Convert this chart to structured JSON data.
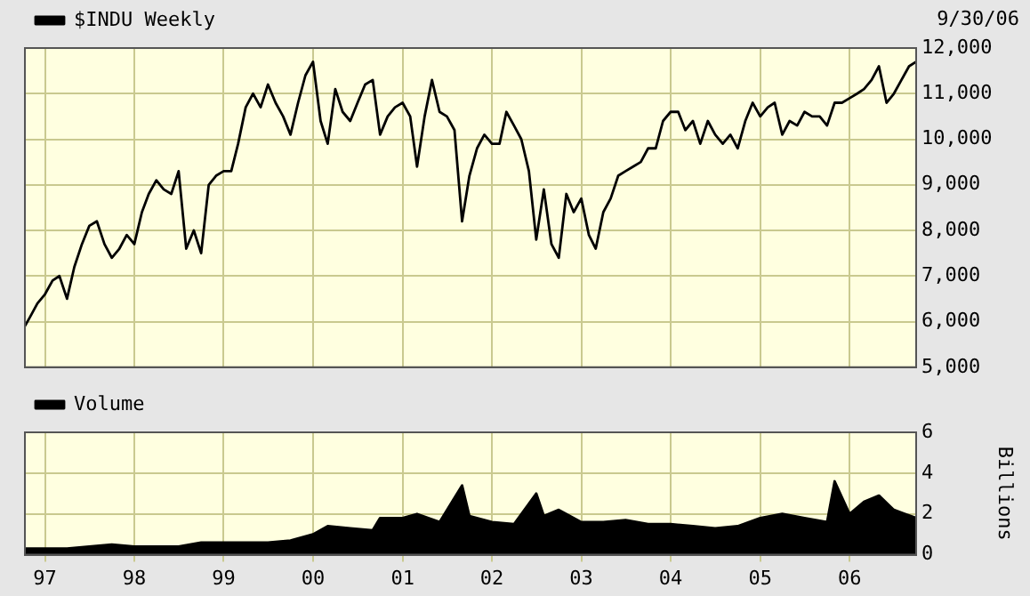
{
  "chart_data": [
    {
      "type": "line",
      "annotations": [
        "9/30/06"
      ],
      "legend": "top left",
      "grid": true,
      "tick_labels": "y",
      "xlim": [
        "1996-10-11",
        "2006-09-30"
      ],
      "xticks": [
        {
          "value": "1997-01-01",
          "label": null
        },
        {
          "value": "1998-01-01",
          "label": null
        },
        {
          "value": "1999-01-01",
          "label": null
        },
        {
          "value": "2000-01-01",
          "label": null
        },
        {
          "value": "2001-01-01",
          "label": null
        },
        {
          "value": "2002-01-01",
          "label": null
        },
        {
          "value": "2003-01-01",
          "label": null
        },
        {
          "value": "2004-01-01",
          "label": null
        },
        {
          "value": "2005-01-01",
          "label": null
        },
        {
          "value": "2006-01-01",
          "label": null
        }
      ],
      "ylim": [
        5000,
        12000
      ],
      "yticks": [
        {
          "value": 5000,
          "label": "5,000"
        },
        {
          "value": 6000,
          "label": "6,000"
        },
        {
          "value": 7000,
          "label": "7,000"
        },
        {
          "value": 8000,
          "label": "8,000"
        },
        {
          "value": 9000,
          "label": "9,000"
        },
        {
          "value": 10000,
          "label": "10,000"
        },
        {
          "value": 11000,
          "label": "11,000"
        },
        {
          "value": 12000,
          "label": "12,000"
        }
      ],
      "x": [
        "1996-10-11",
        "1996-11",
        "1996-12",
        "1997-01",
        "1997-02",
        "1997-03",
        "1997-04",
        "1997-05",
        "1997-06",
        "1997-07",
        "1997-08",
        "1997-09",
        "1997-10",
        "1997-11",
        "1997-12",
        "1998-01",
        "1998-02",
        "1998-03",
        "1998-04",
        "1998-05",
        "1998-06",
        "1998-07",
        "1998-08",
        "1998-09",
        "1998-10",
        "1998-11",
        "1998-12",
        "1999-01",
        "1999-02",
        "1999-03",
        "1999-04",
        "1999-05",
        "1999-06",
        "1999-07",
        "1999-08",
        "1999-09",
        "1999-10",
        "1999-11",
        "1999-12",
        "2000-01",
        "2000-02",
        "2000-03",
        "2000-04",
        "2000-05",
        "2000-06",
        "2000-07",
        "2000-08",
        "2000-09",
        "2000-10",
        "2000-11",
        "2000-12",
        "2001-01",
        "2001-02",
        "2001-03",
        "2001-04",
        "2001-05",
        "2001-06",
        "2001-07",
        "2001-08",
        "2001-09",
        "2001-10",
        "2001-11",
        "2001-12",
        "2002-01",
        "2002-02",
        "2002-03",
        "2002-04",
        "2002-05",
        "2002-06",
        "2002-07",
        "2002-08",
        "2002-09",
        "2002-10",
        "2002-11",
        "2002-12",
        "2003-01",
        "2003-02",
        "2003-03",
        "2003-04",
        "2003-05",
        "2003-06",
        "2003-07",
        "2003-08",
        "2003-09",
        "2003-10",
        "2003-11",
        "2003-12",
        "2004-01",
        "2004-02",
        "2004-03",
        "2004-04",
        "2004-05",
        "2004-06",
        "2004-07",
        "2004-08",
        "2004-09",
        "2004-10",
        "2004-11",
        "2004-12",
        "2005-01",
        "2005-02",
        "2005-03",
        "2005-04",
        "2005-05",
        "2005-06",
        "2005-07",
        "2005-08",
        "2005-09",
        "2005-10",
        "2005-11",
        "2005-12",
        "2006-01",
        "2006-02",
        "2006-03",
        "2006-04",
        "2006-05",
        "2006-06",
        "2006-07",
        "2006-08",
        "2006-09",
        "2006-09-30"
      ],
      "series": [
        {
          "name": "$INDU Weekly",
          "color": "#000000",
          "values": [
            5900,
            6100,
            6400,
            6600,
            6900,
            7000,
            6500,
            7200,
            7700,
            8100,
            8200,
            7700,
            7400,
            7600,
            7900,
            7700,
            8400,
            8800,
            9100,
            8900,
            8800,
            9300,
            7600,
            8000,
            7500,
            9000,
            9200,
            9300,
            9300,
            9900,
            10700,
            11000,
            10700,
            11200,
            10800,
            10500,
            10100,
            10800,
            11400,
            11700,
            10400,
            9900,
            11100,
            10600,
            10400,
            10800,
            11200,
            11300,
            10100,
            10500,
            10700,
            10800,
            10500,
            9400,
            10500,
            11300,
            10600,
            10500,
            10200,
            8200,
            9200,
            9800,
            10100,
            9900,
            9900,
            10600,
            10300,
            10000,
            9300,
            7800,
            8900,
            7700,
            7400,
            8800,
            8400,
            8700,
            7900,
            7600,
            8400,
            8700,
            9200,
            9300,
            9400,
            9500,
            9800,
            9800,
            10400,
            10600,
            10600,
            10200,
            10400,
            9900,
            10400,
            10100,
            9900,
            10100,
            9800,
            10400,
            10800,
            10500,
            10700,
            10800,
            10100,
            10400,
            10300,
            10600,
            10500,
            10500,
            10300,
            10800,
            10800,
            10900,
            11000,
            11100,
            11300,
            11600,
            10800,
            11000,
            11300,
            11600,
            11700
          ]
        }
      ]
    },
    {
      "type": "area",
      "legend": "top left",
      "grid": true,
      "ylabel": "Billions",
      "xlim": [
        "1996-10-11",
        "2006-09-30"
      ],
      "xticks": [
        {
          "value": "1997-01-01",
          "label": "97"
        },
        {
          "value": "1998-01-01",
          "label": "98"
        },
        {
          "value": "1999-01-01",
          "label": "99"
        },
        {
          "value": "2000-01-01",
          "label": "00"
        },
        {
          "value": "2001-01-01",
          "label": "01"
        },
        {
          "value": "2002-01-01",
          "label": "02"
        },
        {
          "value": "2003-01-01",
          "label": "03"
        },
        {
          "value": "2004-01-01",
          "label": "04"
        },
        {
          "value": "2005-01-01",
          "label": "05"
        },
        {
          "value": "2006-01-01",
          "label": "06"
        }
      ],
      "ylim": [
        0,
        6
      ],
      "yticks": [
        0,
        2,
        4,
        6
      ],
      "x": [
        "1996-10-11",
        "1997-01",
        "1997-04",
        "1997-07",
        "1997-10",
        "1998-01",
        "1998-04",
        "1998-07",
        "1998-10",
        "1999-01",
        "1999-04",
        "1999-07",
        "1999-10",
        "2000-01",
        "2000-03",
        "2000-06",
        "2000-09",
        "2000-10",
        "2001-01",
        "2001-03",
        "2001-06",
        "2001-09",
        "2001-10",
        "2002-01",
        "2002-04",
        "2002-07",
        "2002-08",
        "2002-10",
        "2003-01",
        "2003-04",
        "2003-07",
        "2003-10",
        "2004-01",
        "2004-04",
        "2004-07",
        "2004-10",
        "2005-01",
        "2005-04",
        "2005-07",
        "2005-10",
        "2005-11",
        "2006-01",
        "2006-03",
        "2006-05",
        "2006-07",
        "2006-09-30"
      ],
      "series": [
        {
          "name": "Volume",
          "color": "#000000",
          "values": [
            0.3,
            0.3,
            0.3,
            0.4,
            0.5,
            0.4,
            0.4,
            0.4,
            0.6,
            0.6,
            0.6,
            0.6,
            0.7,
            1.0,
            1.4,
            1.3,
            1.2,
            1.8,
            1.8,
            2.0,
            1.6,
            3.4,
            1.9,
            1.6,
            1.5,
            3.0,
            1.9,
            2.2,
            1.6,
            1.6,
            1.7,
            1.5,
            1.5,
            1.4,
            1.3,
            1.4,
            1.8,
            2.0,
            1.8,
            1.6,
            3.6,
            2.0,
            2.6,
            2.9,
            2.2,
            1.8
          ]
        }
      ]
    }
  ]
}
